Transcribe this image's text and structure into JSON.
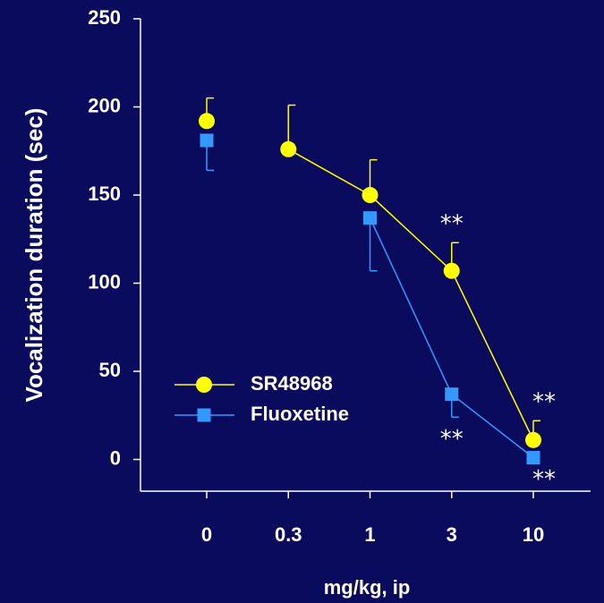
{
  "chart_data": {
    "type": "line",
    "y_label": "Vocalization duration (sec)",
    "x_label": "mg/kg, ip",
    "categories": [
      "0",
      "0.3",
      "1",
      "3",
      "10"
    ],
    "ylim": [
      -18,
      250
    ],
    "yticks": [
      0,
      50,
      100,
      150,
      200,
      250
    ],
    "connect_control": false,
    "series": [
      {
        "name": "SR48968",
        "color": "#ffff00",
        "marker": "circle",
        "values": [
          192,
          176,
          150,
          107,
          11
        ],
        "errors": [
          13,
          25,
          20,
          16,
          11
        ],
        "error_direction": "up"
      },
      {
        "name": "Fluoxetine",
        "color": "#3399ff",
        "marker": "square",
        "values": [
          181,
          null,
          137,
          37,
          1
        ],
        "errors": [
          17,
          null,
          30,
          13,
          0
        ],
        "error_direction": "down"
      }
    ],
    "annotations": [
      {
        "text": "**",
        "series": 0,
        "index": 3
      },
      {
        "text": "**",
        "series": 0,
        "index": 4
      },
      {
        "text": "**",
        "series": 1,
        "index": 3
      },
      {
        "text": "**",
        "series": 1,
        "index": 4
      }
    ]
  }
}
